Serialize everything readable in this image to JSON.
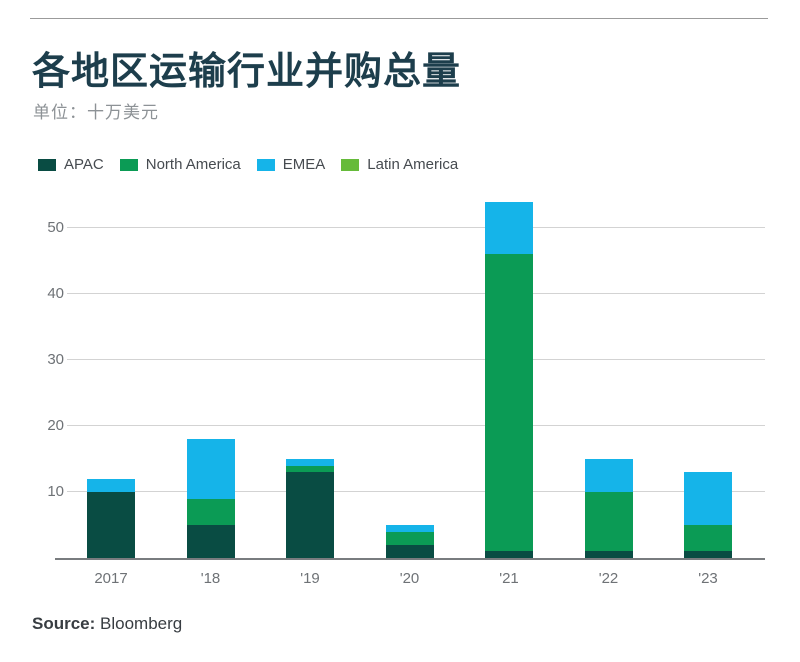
{
  "page": {
    "title": "各地区运输行业并购总量",
    "subtitle": "单位：十万美元",
    "source_label": "Source:",
    "source_value": " Bloomberg"
  },
  "colors": {
    "title_text": "#1d3e4c",
    "subtitle_text": "#8d9296",
    "legend_text": "#464b50",
    "axis_text": "#6e7276",
    "grid_line": "#d3d3d3",
    "axis_line": "#797c7f",
    "top_rule": "#9b9b9b",
    "source_text": "#383d42"
  },
  "chart_data": {
    "type": "bar",
    "stacked": true,
    "title": "各地区运输行业并购总量",
    "subtitle_unit": "单位：十万美元",
    "xlabel": "",
    "ylabel": "",
    "categories": [
      "2017",
      "'18",
      "'19",
      "'20",
      "'21",
      "'22",
      "'23"
    ],
    "series": [
      {
        "name": "APAC",
        "color": "#094c43",
        "values": [
          10,
          5,
          13,
          2,
          1,
          1,
          1
        ]
      },
      {
        "name": "North America",
        "color": "#0b9b55",
        "values": [
          0,
          4,
          1,
          2,
          45,
          9,
          4
        ]
      },
      {
        "name": "EMEA",
        "color": "#15b4e9",
        "values": [
          2,
          9,
          1,
          1,
          8,
          5,
          8
        ]
      },
      {
        "name": "Latin America",
        "color": "#66bb3a",
        "values": [
          0,
          0,
          0,
          0,
          0,
          0,
          0
        ]
      }
    ],
    "totals": [
      12,
      18,
      15,
      5,
      54,
      15,
      13
    ],
    "yticks": [
      10,
      20,
      30,
      40,
      50
    ],
    "ylim": [
      0,
      55
    ],
    "grid": true,
    "legend_position": "top-left"
  }
}
